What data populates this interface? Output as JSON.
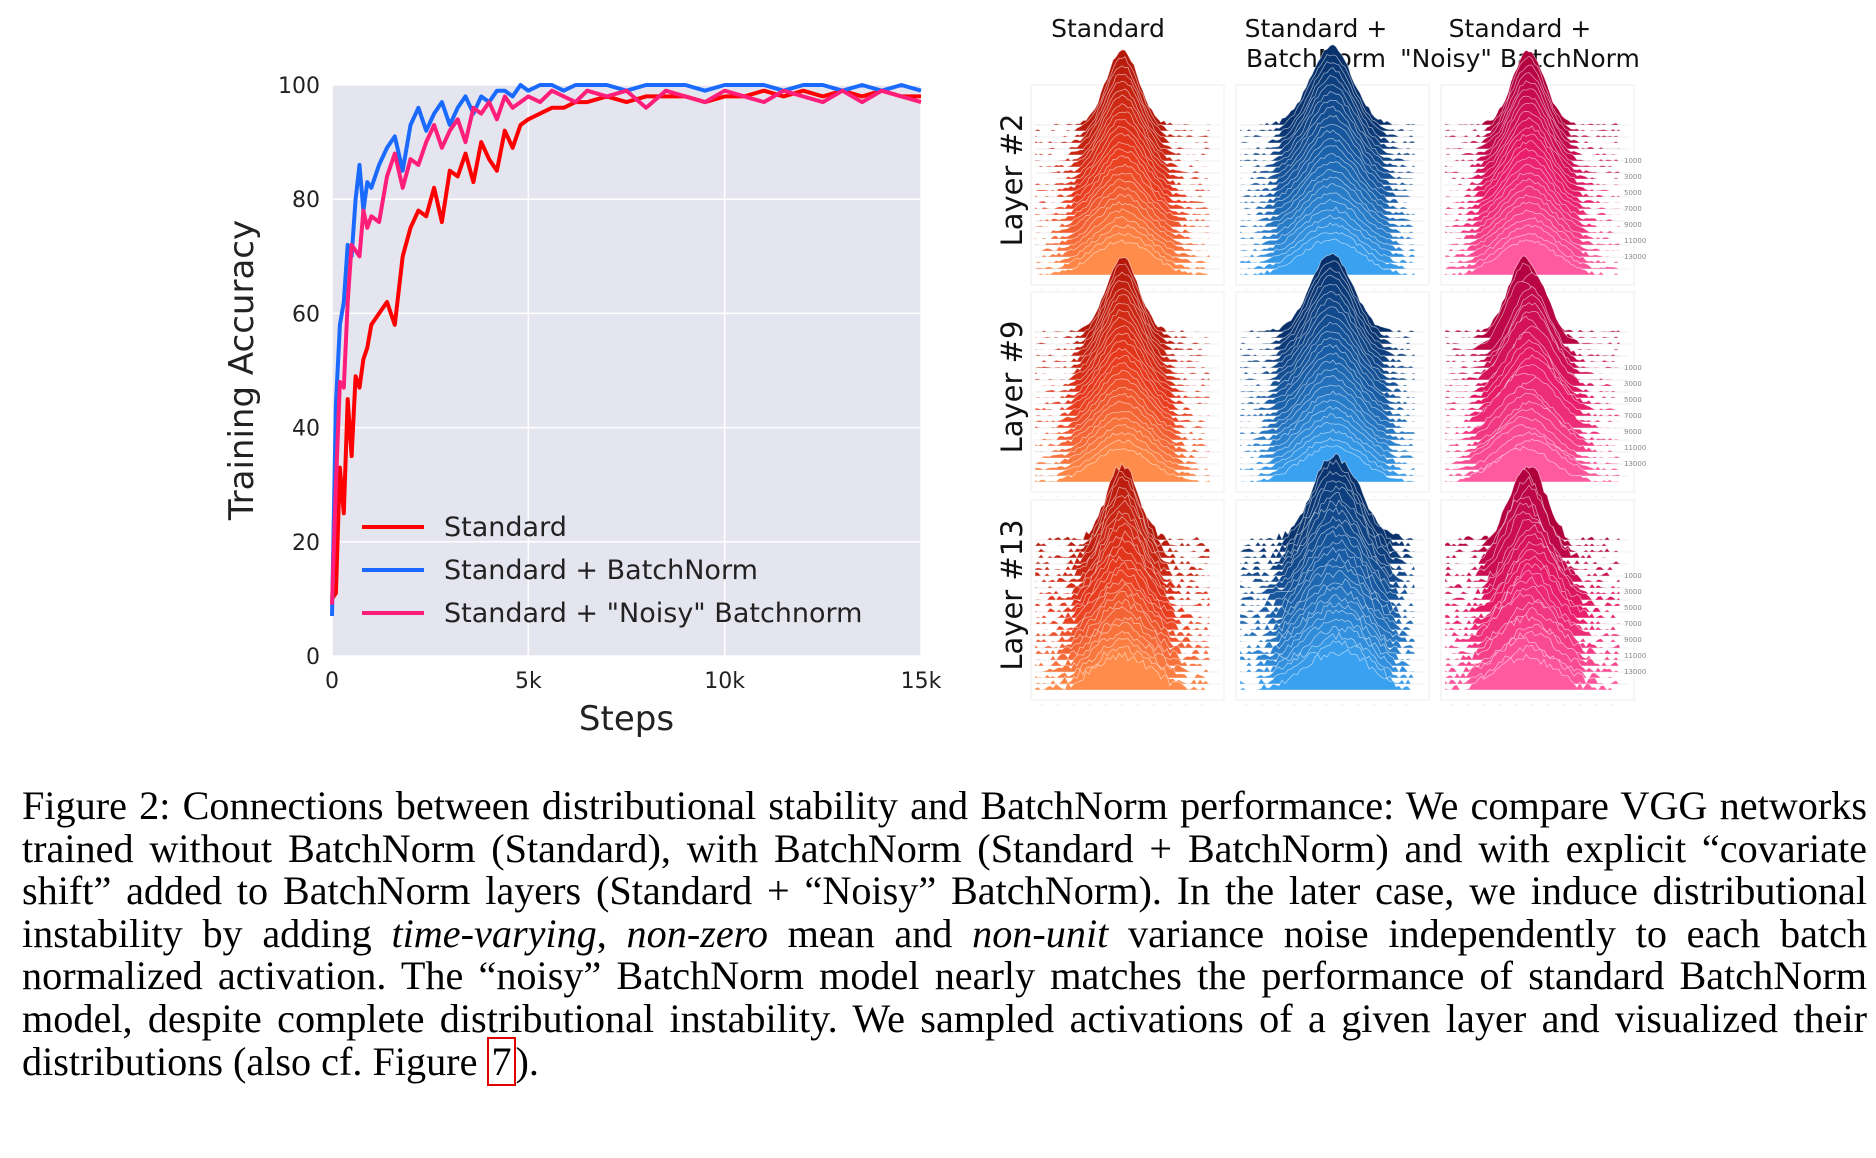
{
  "chart_data": [
    {
      "type": "line",
      "xlabel": "Steps",
      "ylabel": "Training Accuracy",
      "xlim": [
        0,
        15000
      ],
      "ylim": [
        0,
        100
      ],
      "xticks": [
        0,
        5000,
        10000,
        15000
      ],
      "xtick_labels": [
        "0",
        "5k",
        "10k",
        "15k"
      ],
      "yticks": [
        0,
        20,
        40,
        60,
        80,
        100
      ],
      "ytick_labels": [
        "0",
        "20",
        "40",
        "60",
        "80",
        "100"
      ],
      "grid": true,
      "legend_position": "bottom-left",
      "series": [
        {
          "name": "Standard",
          "color": "#ff0000",
          "x": [
            0,
            100,
            200,
            300,
            400,
            500,
            600,
            700,
            800,
            900,
            1000,
            1200,
            1400,
            1600,
            1800,
            2000,
            2200,
            2400,
            2600,
            2800,
            3000,
            3200,
            3400,
            3600,
            3800,
            4000,
            4200,
            4400,
            4600,
            4800,
            5000,
            5300,
            5600,
            5900,
            6200,
            6500,
            7000,
            7500,
            8000,
            8500,
            9000,
            9500,
            10000,
            10500,
            11000,
            11500,
            12000,
            12500,
            13000,
            13500,
            14000,
            14500,
            15000
          ],
          "y": [
            10,
            11,
            33,
            25,
            45,
            35,
            49,
            47,
            52,
            54,
            58,
            60,
            62,
            58,
            70,
            75,
            78,
            77,
            82,
            76,
            85,
            84,
            88,
            83,
            90,
            87,
            85,
            92,
            89,
            93,
            94,
            95,
            96,
            96,
            97,
            97,
            98,
            97,
            98,
            98,
            98,
            97,
            98,
            98,
            99,
            98,
            99,
            98,
            99,
            98,
            99,
            98,
            98
          ]
        },
        {
          "name": "Standard + BatchNorm",
          "color": "#1a6aff",
          "x": [
            0,
            100,
            200,
            300,
            400,
            500,
            600,
            700,
            800,
            900,
            1000,
            1200,
            1400,
            1600,
            1800,
            2000,
            2200,
            2400,
            2600,
            2800,
            3000,
            3200,
            3400,
            3600,
            3800,
            4000,
            4200,
            4400,
            4600,
            4800,
            5000,
            5300,
            5600,
            5900,
            6200,
            6500,
            7000,
            7500,
            8000,
            8500,
            9000,
            9500,
            10000,
            10500,
            11000,
            11500,
            12000,
            12500,
            13000,
            13500,
            14000,
            14500,
            15000
          ],
          "y": [
            7,
            44,
            58,
            62,
            72,
            70,
            80,
            86,
            78,
            83,
            82,
            86,
            89,
            91,
            85,
            93,
            96,
            92,
            95,
            97,
            93,
            96,
            98,
            95,
            98,
            97,
            99,
            99,
            98,
            100,
            99,
            100,
            100,
            99,
            100,
            100,
            100,
            99,
            100,
            100,
            100,
            99,
            100,
            100,
            100,
            99,
            100,
            100,
            99,
            100,
            99,
            100,
            99
          ]
        },
        {
          "name": "Standard + \"Noisy\" Batchnorm",
          "color": "#ff1f7a",
          "x": [
            0,
            100,
            200,
            300,
            400,
            500,
            600,
            700,
            800,
            900,
            1000,
            1200,
            1400,
            1600,
            1800,
            2000,
            2200,
            2400,
            2600,
            2800,
            3000,
            3200,
            3400,
            3600,
            3800,
            4000,
            4200,
            4400,
            4600,
            4800,
            5000,
            5300,
            5600,
            5900,
            6200,
            6500,
            7000,
            7500,
            8000,
            8500,
            9000,
            9500,
            10000,
            10500,
            11000,
            11500,
            12000,
            12500,
            13000,
            13500,
            14000,
            14500,
            15000
          ],
          "y": [
            9,
            30,
            48,
            47,
            62,
            72,
            71,
            70,
            78,
            75,
            77,
            76,
            84,
            88,
            82,
            87,
            86,
            90,
            93,
            89,
            92,
            94,
            90,
            96,
            95,
            97,
            94,
            98,
            96,
            97,
            98,
            97,
            99,
            98,
            97,
            99,
            98,
            99,
            96,
            99,
            98,
            97,
            99,
            98,
            97,
            99,
            98,
            97,
            99,
            97,
            99,
            98,
            97
          ]
        }
      ]
    },
    {
      "type": "other",
      "description_columns": [
        "Standard",
        "Standard +\nBatchNorm",
        "Standard +\n\"Noisy\" BatchNorm"
      ],
      "rows": [
        "Layer #2",
        "Layer #9",
        "Layer #13"
      ]
    }
  ],
  "grid_panel": {
    "columns": [
      {
        "line1": "Standard",
        "line2": ""
      },
      {
        "line1": "Standard +",
        "line2": "BatchNorm"
      },
      {
        "line1": "Standard +",
        "line2": "\"Noisy\" BatchNorm"
      }
    ],
    "rows": [
      "Layer #2",
      "Layer #9",
      "Layer #13"
    ],
    "palettes": [
      {
        "top": "#b5180b",
        "mid": "#e83a1e",
        "bottom": "#ff8c4a"
      },
      {
        "top": "#08306b",
        "mid": "#1a5fa8",
        "bottom": "#3aa0f0"
      },
      {
        "top": "#b0003c",
        "mid": "#e81c6a",
        "bottom": "#ff5aa0"
      }
    ],
    "noisy_step_labels": [
      "1000",
      "3000",
      "5000",
      "7000",
      "9000",
      "11000",
      "13000"
    ]
  },
  "caption": {
    "p1": "Figure 2: Connections between distributional stability and BatchNorm performance: We compare VGG networks trained without BatchNorm (Standard), with BatchNorm (Standard + BatchNorm) and with explicit “covariate shift” added to BatchNorm layers (Standard + “Noisy” BatchNorm). In the later case, we induce distributional instability by adding ",
    "em1": "time-varying",
    "p2": ", ",
    "em2": "non-zero",
    "p3": " mean and ",
    "em3": "non-unit",
    "p4": " variance noise independently to each batch normalized activation. The “noisy” BatchNorm model nearly matches the performance of standard BatchNorm model, despite complete distributional instability. We sampled activations of a given layer and visualized their distributions (also cf. Figure ",
    "ref": "7",
    "p5": ")."
  }
}
